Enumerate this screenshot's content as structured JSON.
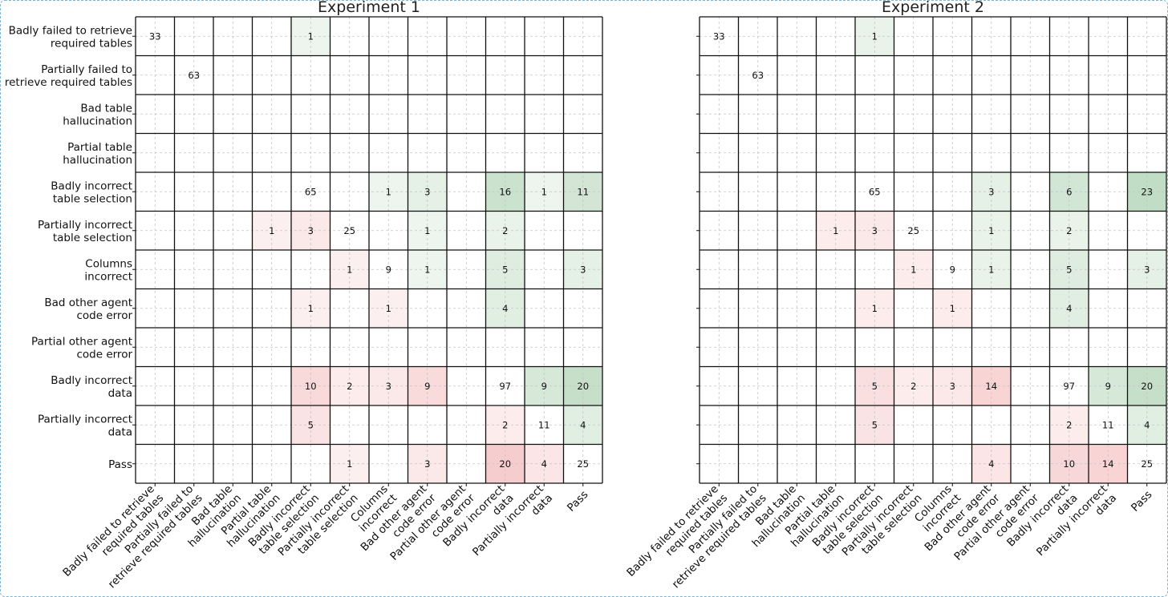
{
  "chart_data": [
    {
      "type": "heatmap",
      "title": "Experiment 1",
      "xlabel": "",
      "ylabel": "",
      "grid": true,
      "categories": [
        "Badly failed to retrieve\nrequired tables",
        "Partially failed to\nretrieve required tables",
        "Bad table\nhallucination",
        "Partial table\nhallucination",
        "Badly incorrect\ntable selection",
        "Partially incorrect\ntable selection",
        "Columns\nincorrect",
        "Bad other agent\ncode error",
        "Partial other agent\ncode error",
        "Badly incorrect\ndata",
        "Partially incorrect\ndata",
        "Pass"
      ],
      "values": [
        [
          33,
          0,
          0,
          0,
          1,
          0,
          0,
          0,
          0,
          0,
          0,
          0
        ],
        [
          0,
          63,
          0,
          0,
          0,
          0,
          0,
          0,
          0,
          0,
          0,
          0
        ],
        [
          0,
          0,
          0,
          0,
          0,
          0,
          0,
          0,
          0,
          0,
          0,
          0
        ],
        [
          0,
          0,
          0,
          0,
          0,
          0,
          0,
          0,
          0,
          0,
          0,
          0
        ],
        [
          0,
          0,
          0,
          0,
          65,
          0,
          1,
          3,
          0,
          16,
          1,
          11
        ],
        [
          0,
          0,
          0,
          1,
          3,
          25,
          0,
          1,
          0,
          2,
          0,
          0
        ],
        [
          0,
          0,
          0,
          0,
          0,
          1,
          9,
          1,
          0,
          5,
          0,
          3
        ],
        [
          0,
          0,
          0,
          0,
          1,
          0,
          1,
          0,
          0,
          4,
          0,
          0
        ],
        [
          0,
          0,
          0,
          0,
          0,
          0,
          0,
          0,
          0,
          0,
          0,
          0
        ],
        [
          0,
          0,
          0,
          0,
          10,
          2,
          3,
          9,
          0,
          97,
          9,
          20
        ],
        [
          0,
          0,
          0,
          0,
          5,
          0,
          0,
          0,
          0,
          2,
          11,
          4
        ],
        [
          0,
          0,
          0,
          0,
          0,
          1,
          0,
          3,
          0,
          20,
          4,
          25
        ]
      ]
    },
    {
      "type": "heatmap",
      "title": "Experiment 2",
      "xlabel": "",
      "ylabel": "",
      "grid": true,
      "categories": [
        "Badly failed to retrieve\nrequired tables",
        "Partially failed to\nretrieve required tables",
        "Bad table\nhallucination",
        "Partial table\nhallucination",
        "Badly incorrect\ntable selection",
        "Partially incorrect\ntable selection",
        "Columns\nincorrect",
        "Bad other agent\ncode error",
        "Partial other agent\ncode error",
        "Badly incorrect\ndata",
        "Partially incorrect\ndata",
        "Pass"
      ],
      "values": [
        [
          33,
          0,
          0,
          0,
          1,
          0,
          0,
          0,
          0,
          0,
          0,
          0
        ],
        [
          0,
          63,
          0,
          0,
          0,
          0,
          0,
          0,
          0,
          0,
          0,
          0
        ],
        [
          0,
          0,
          0,
          0,
          0,
          0,
          0,
          0,
          0,
          0,
          0,
          0
        ],
        [
          0,
          0,
          0,
          0,
          0,
          0,
          0,
          0,
          0,
          0,
          0,
          0
        ],
        [
          0,
          0,
          0,
          0,
          65,
          0,
          0,
          3,
          0,
          6,
          0,
          23
        ],
        [
          0,
          0,
          0,
          1,
          3,
          25,
          0,
          1,
          0,
          2,
          0,
          0
        ],
        [
          0,
          0,
          0,
          0,
          0,
          1,
          9,
          1,
          0,
          5,
          0,
          3
        ],
        [
          0,
          0,
          0,
          0,
          1,
          0,
          1,
          0,
          0,
          4,
          0,
          0
        ],
        [
          0,
          0,
          0,
          0,
          0,
          0,
          0,
          0,
          0,
          0,
          0,
          0
        ],
        [
          0,
          0,
          0,
          0,
          5,
          2,
          3,
          14,
          0,
          97,
          9,
          20
        ],
        [
          0,
          0,
          0,
          0,
          5,
          0,
          0,
          0,
          0,
          2,
          11,
          4
        ],
        [
          0,
          0,
          0,
          0,
          0,
          0,
          0,
          4,
          0,
          10,
          14,
          25
        ]
      ]
    }
  ],
  "colors": {
    "improved": "#2e8b3a",
    "worsened": "#e0484d",
    "grid_line": "#111111",
    "dashed_grid": "#c4c4c4"
  }
}
